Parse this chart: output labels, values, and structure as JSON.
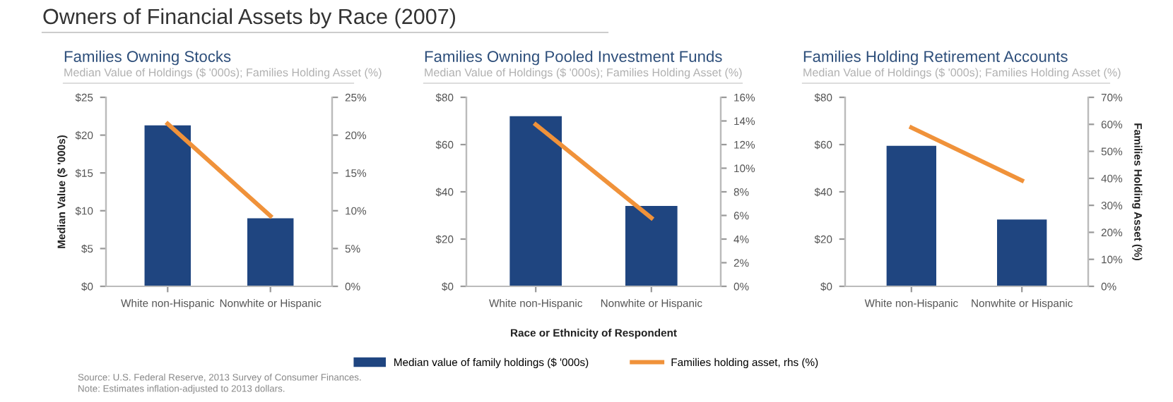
{
  "chart_data": [
    {
      "type": "bar",
      "title": "Families Owning Stocks",
      "subtitle": "Median Value of Holdings ($ '000s); Families Holding Asset (%)",
      "ylabel": "Median Value ($ '000s)",
      "annotations": [
        "Owners of Financial Assets by Race (2007)",
        "Source: U.S. Federal Reserve, 2013 Survey of Consumer Finances.",
        "Note: Estimates inflation-adjusted to 2013 dollars."
      ],
      "categories": [
        "White non-Hispanic",
        "Nonwhite or Hispanic"
      ],
      "series": [
        {
          "color": "#1f4580",
          "values": [
            21.3,
            9.0
          ]
        },
        {
          "type": "line",
          "axis": "y2",
          "color": "#f0923a",
          "values": [
            21.5,
            9.3
          ]
        }
      ],
      "ylim": [
        0,
        25
      ],
      "yticks": [
        {
          "value": 0,
          "label": "$0"
        },
        {
          "value": 5,
          "label": "$5"
        },
        {
          "value": 10,
          "label": "$10"
        },
        {
          "value": 15,
          "label": "$15"
        },
        {
          "value": 20,
          "label": "$20"
        },
        {
          "value": 25,
          "label": "$25"
        }
      ],
      "y2lim": [
        0,
        25
      ],
      "y2ticks": [
        {
          "value": 0,
          "label": "0%"
        },
        {
          "value": 5,
          "label": "5%"
        },
        {
          "value": 10,
          "label": "10%"
        },
        {
          "value": 15,
          "label": "15%"
        },
        {
          "value": 20,
          "label": "20%"
        },
        {
          "value": 25,
          "label": "25%"
        }
      ],
      "grid": false,
      "legend": false
    },
    {
      "type": "bar",
      "title": "Families Owning Pooled Investment Funds",
      "subtitle": "Median Value of Holdings ($ '000s); Families Holding Asset (%)",
      "xlabel": "Race or Ethnicity of Respondent",
      "categories": [
        "White non-Hispanic",
        "Nonwhite or Hispanic"
      ],
      "series": [
        {
          "name": "Median value of family holdings ($ '000s)",
          "color": "#1f4580",
          "values": [
            72,
            34
          ]
        },
        {
          "type": "line",
          "axis": "y2",
          "name": "Families holding asset, rhs (%)",
          "color": "#f0923a",
          "values": [
            13.7,
            5.8
          ]
        }
      ],
      "ylim": [
        0,
        80
      ],
      "yticks": [
        {
          "value": 0,
          "label": "$0"
        },
        {
          "value": 20,
          "label": "$20"
        },
        {
          "value": 40,
          "label": "$40"
        },
        {
          "value": 60,
          "label": "$60"
        },
        {
          "value": 80,
          "label": "$80"
        }
      ],
      "y2lim": [
        0,
        16
      ],
      "y2ticks": [
        {
          "value": 0,
          "label": "0%"
        },
        {
          "value": 2,
          "label": "2%"
        },
        {
          "value": 4,
          "label": "4%"
        },
        {
          "value": 6,
          "label": "6%"
        },
        {
          "value": 8,
          "label": "8%"
        },
        {
          "value": 10,
          "label": "10%"
        },
        {
          "value": 12,
          "label": "12%"
        },
        {
          "value": 14,
          "label": "14%"
        },
        {
          "value": 16,
          "label": "16%"
        }
      ],
      "grid": false,
      "legend": "bottom"
    },
    {
      "type": "bar",
      "title": "Families Holding Retirement Accounts",
      "subtitle": "Median Value of Holdings ($ '000s); Families Holding Asset (%)",
      "y2label": "Families Holding Asset (%)",
      "categories": [
        "White non-Hispanic",
        "Nonwhite or Hispanic"
      ],
      "series": [
        {
          "color": "#1f4580",
          "values": [
            59.5,
            28.3
          ]
        },
        {
          "type": "line",
          "axis": "y2",
          "color": "#f0923a",
          "values": [
            58.8,
            39.2
          ]
        }
      ],
      "ylim": [
        0,
        80
      ],
      "yticks": [
        {
          "value": 0,
          "label": "$0"
        },
        {
          "value": 20,
          "label": "$20"
        },
        {
          "value": 40,
          "label": "$40"
        },
        {
          "value": 60,
          "label": "$60"
        },
        {
          "value": 80,
          "label": "$80"
        }
      ],
      "y2lim": [
        0,
        70
      ],
      "y2ticks": [
        {
          "value": 0,
          "label": "0%"
        },
        {
          "value": 10,
          "label": "10%"
        },
        {
          "value": 20,
          "label": "20%"
        },
        {
          "value": 30,
          "label": "30%"
        },
        {
          "value": 40,
          "label": "40%"
        },
        {
          "value": 50,
          "label": "50%"
        },
        {
          "value": 60,
          "label": "60%"
        },
        {
          "value": 70,
          "label": "70%"
        }
      ],
      "grid": false,
      "legend": false
    }
  ]
}
